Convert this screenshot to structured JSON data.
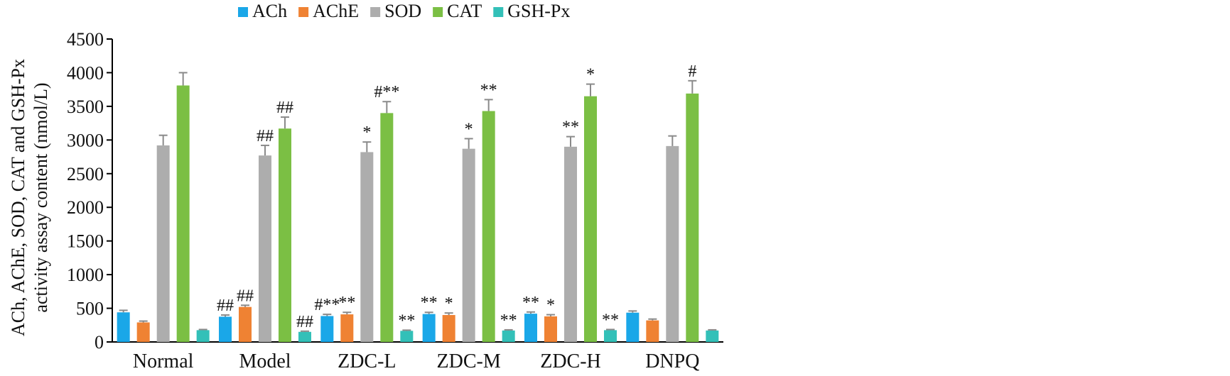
{
  "chart_data": {
    "type": "bar",
    "ylabel_lines": [
      "ACh, AChE, SOD, CAT and GSH-Px",
      "activity assay content (nmol/L)"
    ],
    "xlabel": "",
    "ylim": [
      0,
      4500
    ],
    "yticks": [
      0,
      500,
      1000,
      1500,
      2000,
      2500,
      3000,
      3500,
      4000,
      4500
    ],
    "grid": false,
    "legend_position": "top",
    "categories": [
      "Normal",
      "Model",
      "ZDC-L",
      "ZDC-M",
      "ZDC-H",
      "DNPQ"
    ],
    "series": [
      {
        "name": "ACh",
        "color": "#1aa7e8",
        "values": [
          440,
          375,
          385,
          415,
          420,
          435
        ],
        "errors": [
          30,
          25,
          25,
          25,
          25,
          25
        ],
        "annotations": [
          "",
          "##",
          "#**",
          "**",
          "**",
          ""
        ]
      },
      {
        "name": "AChE",
        "color": "#ef8233",
        "values": [
          290,
          520,
          410,
          400,
          380,
          320
        ],
        "errors": [
          20,
          25,
          30,
          30,
          25,
          20
        ],
        "annotations": [
          "",
          "##",
          "**",
          "*",
          "*",
          ""
        ]
      },
      {
        "name": "SOD",
        "color": "#adadad",
        "values": [
          2920,
          2770,
          2820,
          2870,
          2900,
          2910
        ],
        "errors": [
          150,
          150,
          150,
          150,
          150,
          150
        ],
        "annotations": [
          "",
          "##",
          "*",
          "*",
          "**",
          ""
        ]
      },
      {
        "name": "CAT",
        "color": "#7bbf44",
        "values": [
          3810,
          3170,
          3400,
          3430,
          3650,
          3690
        ],
        "errors": [
          190,
          170,
          170,
          170,
          180,
          190
        ],
        "annotations": [
          "",
          "##",
          "#**",
          "**",
          "*",
          "#"
        ]
      },
      {
        "name": "GSH-Px",
        "color": "#33c0b8",
        "values": [
          175,
          150,
          165,
          170,
          175,
          170
        ],
        "errors": [
          10,
          10,
          10,
          10,
          10,
          10
        ],
        "annotations": [
          "",
          "##",
          "**",
          "**",
          "**",
          ""
        ]
      }
    ]
  }
}
